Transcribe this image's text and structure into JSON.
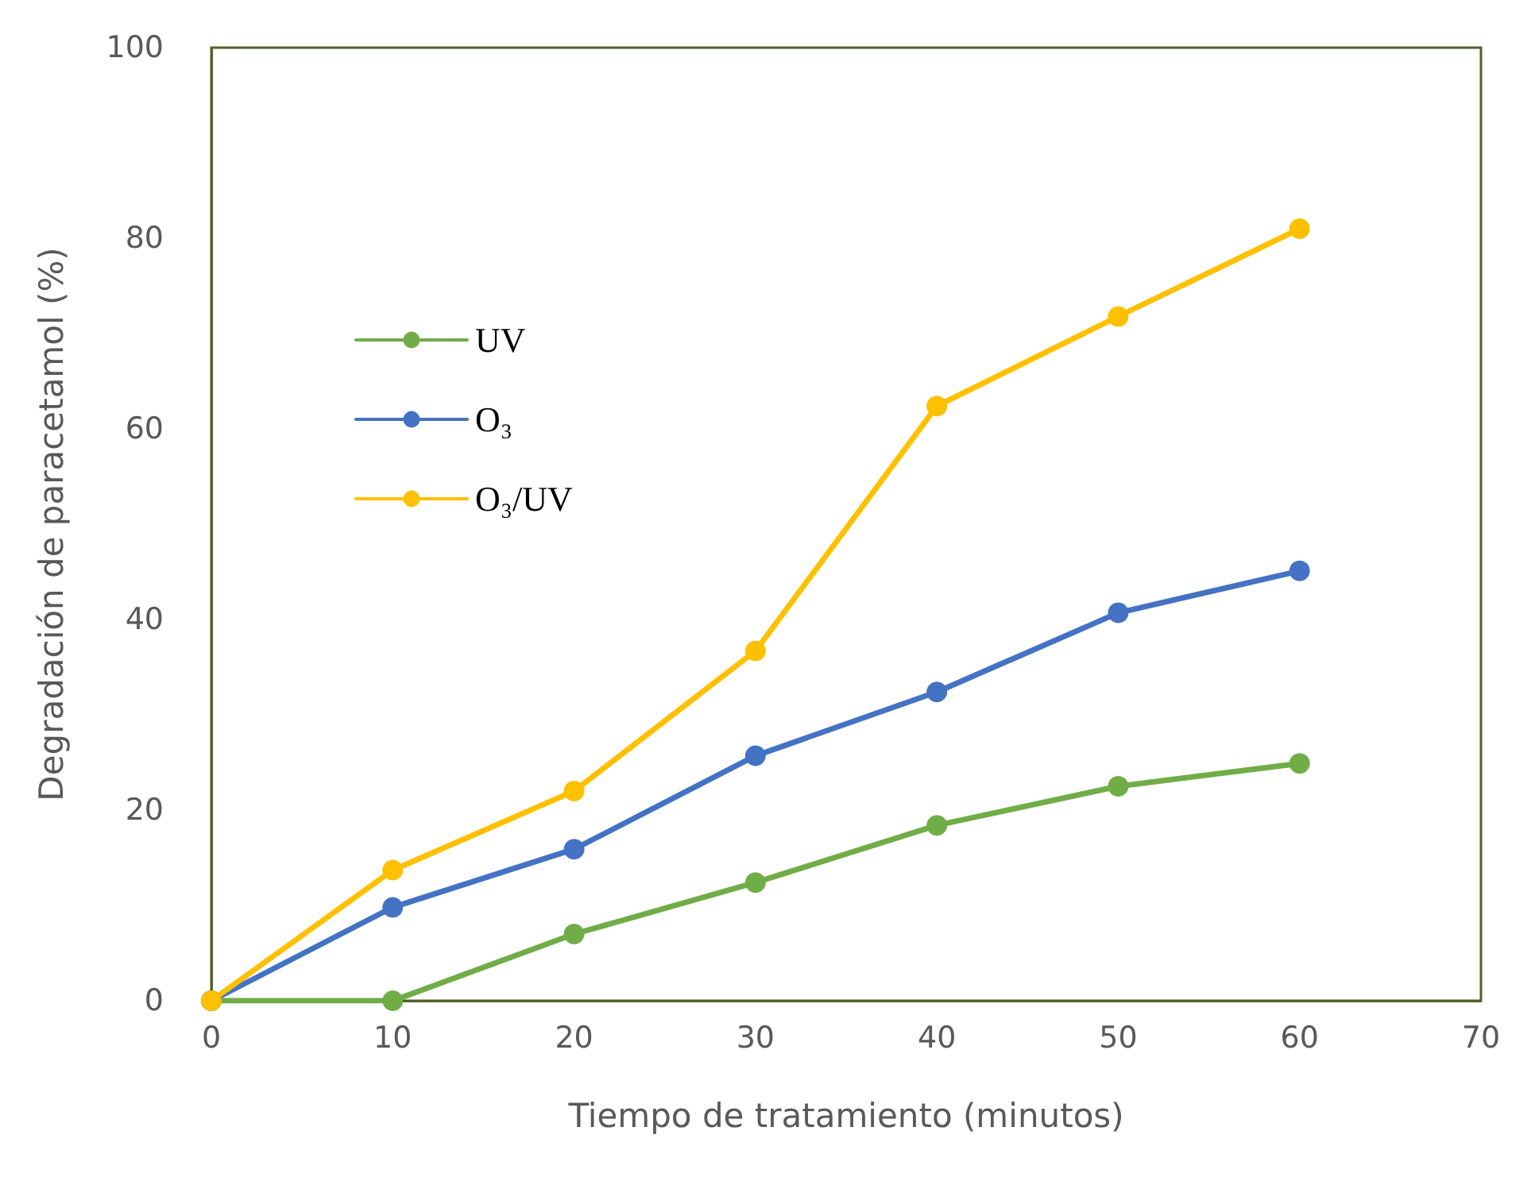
{
  "chart_data": {
    "type": "line",
    "xlabel": "Tiempo de tratamiento (minutos)",
    "ylabel": "Degradación de paracetamol (%)",
    "x": [
      0,
      10,
      20,
      30,
      40,
      50,
      60
    ],
    "series": [
      {
        "name": "UV",
        "color": "#70ad47",
        "values": [
          0,
          0,
          7.0,
          12.4,
          18.4,
          22.5,
          24.9
        ]
      },
      {
        "name": "O₃",
        "color": "#4472c4",
        "values": [
          0,
          9.8,
          15.9,
          25.7,
          32.4,
          40.7,
          45.1
        ]
      },
      {
        "name": "O₃/UV",
        "color": "#ffc000",
        "values": [
          0,
          13.7,
          22.0,
          36.7,
          62.4,
          71.8,
          81.0
        ]
      }
    ],
    "xlim": [
      0,
      70
    ],
    "xticks": [
      0,
      10,
      20,
      30,
      40,
      50,
      60,
      70
    ],
    "ylim": [
      0,
      100
    ],
    "yticks": [
      0,
      20,
      40,
      60,
      80,
      100
    ],
    "grid": false,
    "legend": "top left",
    "marker": "circle",
    "line_style": "solid"
  }
}
